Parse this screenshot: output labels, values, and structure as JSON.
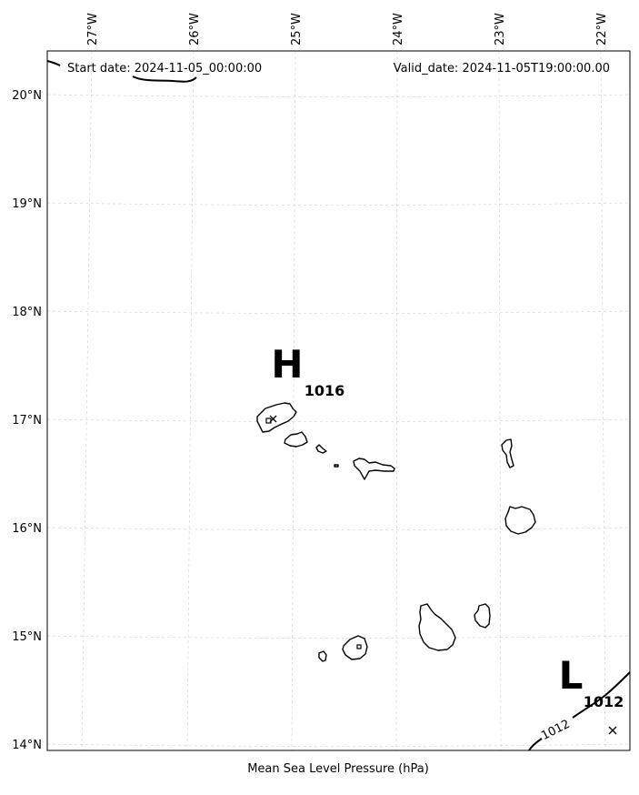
{
  "header": {
    "start_date": "Start date: 2024-11-05_00:00:00",
    "valid_date": "Valid_date: 2024-11-05T19:00:00.00"
  },
  "caption": "Mean Sea Level Pressure (hPa)",
  "axes": {
    "lon_labels": [
      "27°W",
      "26°W",
      "25°W",
      "24°W",
      "23°W",
      "22°W"
    ],
    "lat_labels": [
      "20°N",
      "19°N",
      "18°N",
      "17°N",
      "16°N",
      "15°N",
      "14°N"
    ]
  },
  "pressure_systems": [
    {
      "letter": "H",
      "value": "1016"
    },
    {
      "letter": "L",
      "value": "1012"
    }
  ],
  "isobar_labels": [
    "1012"
  ],
  "chart_data": {
    "type": "map",
    "variable": "Mean Sea Level Pressure (hPa)",
    "lon_range": [
      -27.4,
      -21.7
    ],
    "lat_range": [
      13.95,
      20.4
    ],
    "gridlines": true,
    "pressure_centers": [
      {
        "type": "H",
        "value": 1016,
        "lon": -25.2,
        "lat": 17.0
      },
      {
        "type": "L",
        "value": 1012,
        "lon": -21.9,
        "lat": 14.15
      }
    ],
    "contours": [
      1012
    ]
  }
}
